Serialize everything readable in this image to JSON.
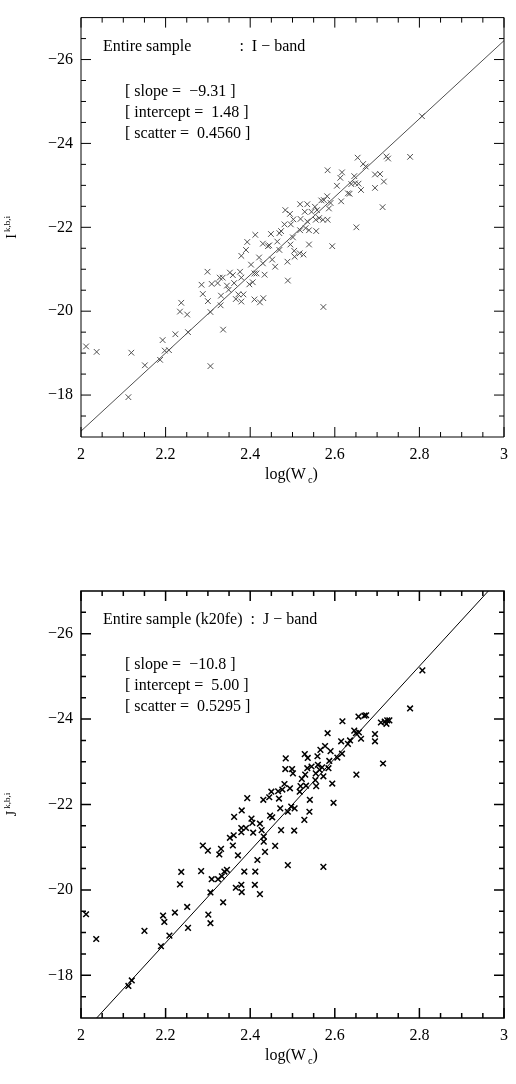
{
  "chart_data": [
    {
      "type": "scatter",
      "xlabel": "log(W$_{c}$)",
      "ylabel": "I$^{k,b,i}$",
      "annotations": [
        "Entire sample            :  I − band",
        "[ slope =  −9.31 ]",
        "[ intercept =  1.48 ]",
        "[ scatter =  0.4560 ]"
      ],
      "xlim": [
        2,
        3
      ],
      "ylim": [
        -17,
        -27
      ],
      "xticks": [
        2,
        {
          "value": 2.05,
          "label": null
        },
        2.2,
        {
          "value": 2.1,
          "label": null
        },
        {
          "value": 2.15,
          "label": null
        },
        {
          "value": 2.25,
          "label": null
        },
        2.4,
        {
          "value": 2.3,
          "label": null
        },
        {
          "value": 2.35,
          "label": null
        },
        {
          "value": 2.45,
          "label": null
        },
        2.6,
        {
          "value": 2.5,
          "label": null
        },
        {
          "value": 2.55,
          "label": null
        },
        {
          "value": 2.65,
          "label": null
        },
        2.8,
        {
          "value": 2.7,
          "label": null
        },
        {
          "value": 2.75,
          "label": null
        },
        {
          "value": 2.85,
          "label": null
        },
        {
          "value": 2.9,
          "label": null
        },
        {
          "value": 2.95,
          "label": null
        },
        3
      ],
      "yticks": [
        {
          "value": -26,
          "label": "−26"
        },
        {
          "value": -24,
          "label": "−24"
        },
        {
          "value": -22,
          "label": "−22"
        },
        {
          "value": -20,
          "label": "−20"
        },
        {
          "value": -18,
          "label": "−18"
        },
        {
          "value": -26.5,
          "label": null
        },
        {
          "value": -25.5,
          "label": null
        },
        {
          "value": -25,
          "label": null
        },
        {
          "value": -24.5,
          "label": null
        },
        {
          "value": -23.5,
          "label": null
        },
        {
          "value": -23,
          "label": null
        },
        {
          "value": -22.5,
          "label": null
        },
        {
          "value": -21.5,
          "label": null
        },
        {
          "value": -21,
          "label": null
        },
        {
          "value": -20.5,
          "label": null
        },
        {
          "value": -19.5,
          "label": null
        },
        {
          "value": -19,
          "label": null
        },
        {
          "value": -18.5,
          "label": null
        },
        {
          "value": -17.5,
          "label": null
        }
      ],
      "series": [
        {
          "type": "scatter",
          "color": "#505050",
          "marker": "cross",
          "x": [
            2.012,
            2.037,
            2.119,
            2.112,
            2.151,
            2.187,
            2.193,
            2.198,
            2.208,
            2.223,
            2.234,
            2.237,
            2.251,
            2.253,
            2.285,
            2.288,
            2.299,
            2.3,
            2.306,
            2.306,
            2.309,
            2.323,
            2.328,
            2.335,
            2.331,
            2.33,
            2.336,
            2.345,
            2.349,
            2.352,
            2.359,
            2.362,
            2.366,
            2.372,
            2.376,
            2.379,
            2.379,
            2.379,
            2.384,
            2.39,
            2.393,
            2.398,
            2.402,
            2.406,
            2.412,
            2.41,
            2.41,
            2.415,
            2.423,
            2.421,
            2.43,
            2.43,
            2.431,
            2.434,
            2.445,
            2.449,
            2.452,
            2.459,
            2.442,
            2.464,
            2.469,
            2.469,
            2.473,
            2.483,
            2.481,
            2.488,
            2.489,
            2.494,
            2.496,
            2.495,
            2.501,
            2.502,
            2.504,
            2.505,
            2.517,
            2.518,
            2.518,
            2.519,
            2.526,
            2.529,
            2.531,
            2.535,
            2.535,
            2.539,
            2.539,
            2.545,
            2.553,
            2.555,
            2.556,
            2.558,
            2.563,
            2.568,
            2.572,
            2.573,
            2.574,
            2.582,
            2.583,
            2.583,
            2.586,
            2.59,
            2.594,
            2.605,
            2.613,
            2.617,
            2.615,
            2.631,
            2.635,
            2.639,
            2.646,
            2.648,
            2.651,
            2.654,
            2.656,
            2.662,
            2.667,
            2.673,
            2.695,
            2.695,
            2.707,
            2.716,
            2.713,
            2.722,
            2.726,
            2.778,
            2.806
          ],
          "values": [
            -19.16,
            -19.03,
            -19.01,
            -17.95,
            -18.71,
            -18.84,
            -19.31,
            -19.06,
            -19.07,
            -19.45,
            -19.99,
            -20.2,
            -19.92,
            -19.5,
            -20.63,
            -20.41,
            -20.94,
            -20.24,
            -19.98,
            -18.69,
            -20.65,
            -20.67,
            -20.8,
            -20.8,
            -20.37,
            -20.14,
            -19.56,
            -20.61,
            -20.51,
            -20.92,
            -20.86,
            -20.67,
            -20.29,
            -20.4,
            -20.94,
            -21.32,
            -20.8,
            -20.23,
            -20.4,
            -21.46,
            -21.65,
            -20.64,
            -21.11,
            -20.69,
            -21.82,
            -20.9,
            -20.28,
            -20.9,
            -20.21,
            -21.28,
            -21.61,
            -21.14,
            -20.31,
            -20.87,
            -21.57,
            -21.84,
            -21.23,
            -21.06,
            -21.55,
            -21.66,
            -21.46,
            -21.86,
            -21.91,
            -22.41,
            -22.07,
            -21.18,
            -20.73,
            -22.32,
            -22.07,
            -21.59,
            -21.76,
            -22.19,
            -21.44,
            -21.3,
            -21.38,
            -22.55,
            -21.93,
            -22.2,
            -21.35,
            -22.37,
            -21.98,
            -22.55,
            -22.14,
            -21.93,
            -21.59,
            -22.37,
            -22.49,
            -22.18,
            -21.91,
            -22.41,
            -22.22,
            -22.64,
            -22.18,
            -20.1,
            -22.65,
            -22.74,
            -23.36,
            -22.18,
            -22.45,
            -22.58,
            -21.55,
            -22.99,
            -23.18,
            -23.31,
            -22.62,
            -22.81,
            -22.8,
            -23.03,
            -23.22,
            -23.05,
            -22,
            -23.66,
            -23.04,
            -22.89,
            -23.51,
            -23.45,
            -23.26,
            -22.94,
            -23.27,
            -23.09,
            -22.48,
            -23.69,
            -23.64,
            -23.68,
            -24.65
          ]
        },
        {
          "type": "line",
          "color": "#505050",
          "marker": "none",
          "x": [
            2,
            3
          ],
          "values": [
            -17.14,
            -26.45
          ]
        }
      ]
    },
    {
      "type": "scatter",
      "xlabel": "log(W$_{c}$)",
      "ylabel": "J$^{k,b,i}$",
      "annotations": [
        "Entire sample (k20fe)  :  J − band",
        "[ slope =  −10.8 ]",
        "[ intercept =  5.00 ]",
        "[ scatter =  0.5295 ]"
      ],
      "xlim": [
        2,
        3
      ],
      "ylim": [
        -17,
        -27
      ],
      "xticks": [
        2,
        {
          "value": 2.05,
          "label": null
        },
        2.2,
        {
          "value": 2.1,
          "label": null
        },
        {
          "value": 2.15,
          "label": null
        },
        {
          "value": 2.25,
          "label": null
        },
        2.4,
        {
          "value": 2.3,
          "label": null
        },
        {
          "value": 2.35,
          "label": null
        },
        {
          "value": 2.45,
          "label": null
        },
        2.6,
        {
          "value": 2.5,
          "label": null
        },
        {
          "value": 2.55,
          "label": null
        },
        {
          "value": 2.65,
          "label": null
        },
        2.8,
        {
          "value": 2.7,
          "label": null
        },
        {
          "value": 2.75,
          "label": null
        },
        {
          "value": 2.85,
          "label": null
        },
        {
          "value": 2.9,
          "label": null
        },
        {
          "value": 2.95,
          "label": null
        },
        3
      ],
      "yticks": [
        {
          "value": -26,
          "label": "−26"
        },
        {
          "value": -24,
          "label": "−24"
        },
        {
          "value": -22,
          "label": "−22"
        },
        {
          "value": -20,
          "label": "−20"
        },
        {
          "value": -18,
          "label": "−18"
        },
        {
          "value": -26.5,
          "label": null
        },
        {
          "value": -25.5,
          "label": null
        },
        {
          "value": -25,
          "label": null
        },
        {
          "value": -24.5,
          "label": null
        },
        {
          "value": -23.5,
          "label": null
        },
        {
          "value": -23,
          "label": null
        },
        {
          "value": -22.5,
          "label": null
        },
        {
          "value": -21.5,
          "label": null
        },
        {
          "value": -21,
          "label": null
        },
        {
          "value": -20.5,
          "label": null
        },
        {
          "value": -19.5,
          "label": null
        },
        {
          "value": -19,
          "label": null
        },
        {
          "value": -18.5,
          "label": null
        },
        {
          "value": -17.5,
          "label": null
        }
      ],
      "series": [
        {
          "type": "scatter",
          "color": "#000000",
          "marker": "cross",
          "x": [
            2.012,
            2.036,
            2.112,
            2.12,
            2.15,
            2.189,
            2.194,
            2.197,
            2.209,
            2.222,
            2.234,
            2.237,
            2.251,
            2.253,
            2.284,
            2.288,
            2.3,
            2.301,
            2.306,
            2.306,
            2.309,
            2.324,
            2.327,
            2.331,
            2.333,
            2.336,
            2.339,
            2.345,
            2.352,
            2.359,
            2.361,
            2.362,
            2.366,
            2.371,
            2.379,
            2.38,
            2.38,
            2.379,
            2.379,
            2.386,
            2.39,
            2.393,
            2.403,
            2.405,
            2.407,
            2.412,
            2.411,
            2.417,
            2.423,
            2.423,
            2.427,
            2.432,
            2.432,
            2.431,
            2.435,
            2.445,
            2.447,
            2.45,
            2.452,
            2.459,
            2.466,
            2.468,
            2.473,
            2.471,
            2.476,
            2.481,
            2.484,
            2.483,
            2.489,
            2.489,
            2.494,
            2.497,
            2.499,
            2.501,
            2.504,
            2.505,
            2.517,
            2.519,
            2.522,
            2.528,
            2.529,
            2.53,
            2.532,
            2.535,
            2.536,
            2.54,
            2.541,
            2.545,
            2.554,
            2.555,
            2.556,
            2.559,
            2.56,
            2.566,
            2.564,
            2.57,
            2.573,
            2.573,
            2.577,
            2.583,
            2.585,
            2.587,
            2.59,
            2.594,
            2.597,
            2.606,
            2.615,
            2.617,
            2.618,
            2.631,
            2.636,
            2.646,
            2.65,
            2.651,
            2.656,
            2.657,
            2.662,
            2.67,
            2.674,
            2.695,
            2.695,
            2.709,
            2.714,
            2.718,
            2.722,
            2.724,
            2.729,
            2.778,
            2.807
          ],
          "values": [
            -19.43,
            -18.85,
            -17.75,
            -17.88,
            -19.04,
            -18.68,
            -19.4,
            -19.25,
            -18.93,
            -19.47,
            -20.13,
            -20.42,
            -19.6,
            -19.11,
            -20.44,
            -21.04,
            -20.92,
            -19.42,
            -19.22,
            -19.94,
            -20.25,
            -20.25,
            -20.83,
            -20.96,
            -20.32,
            -19.71,
            -20.43,
            -20.47,
            -21.22,
            -21.04,
            -21.28,
            -21.71,
            -20.05,
            -20.81,
            -20.12,
            -19.95,
            -21.86,
            -21.45,
            -21.35,
            -20.43,
            -21.45,
            -22.15,
            -21.67,
            -21.57,
            -21.34,
            -20.43,
            -20.12,
            -20.7,
            -19.9,
            -21.55,
            -21.4,
            -21.25,
            -21.13,
            -22.11,
            -20.89,
            -22.17,
            -21.74,
            -22.3,
            -21.7,
            -21.03,
            -22.31,
            -22.14,
            -21.4,
            -21.91,
            -22.35,
            -22.48,
            -23.08,
            -22.83,
            -20.58,
            -21.83,
            -22.38,
            -21.95,
            -22.83,
            -22.73,
            -21.39,
            -21.91,
            -22.3,
            -22.43,
            -22.6,
            -21.64,
            -23.18,
            -22.7,
            -22.44,
            -22.85,
            -23.09,
            -21.83,
            -22.11,
            -22.89,
            -22.57,
            -22.73,
            -22.43,
            -23.13,
            -22.93,
            -23.28,
            -22.81,
            -22.87,
            -22.66,
            -20.54,
            -23.37,
            -23.67,
            -22.85,
            -23.02,
            -23.25,
            -22.49,
            -22.04,
            -23.1,
            -23.48,
            -23.19,
            -23.95,
            -23.42,
            -23.5,
            -23.73,
            -23.67,
            -22.7,
            -24.06,
            -23.69,
            -23.54,
            -24.08,
            -24.09,
            -23.65,
            -23.48,
            -23.92,
            -22.96,
            -23.94,
            -23.89,
            -23.97,
            -23.97,
            -24.25,
            -25.14
          ]
        },
        {
          "type": "line",
          "color": "#000000",
          "marker": "none",
          "x": [
            2.037,
            2.963
          ],
          "values": [
            -17,
            -27
          ]
        }
      ]
    }
  ]
}
